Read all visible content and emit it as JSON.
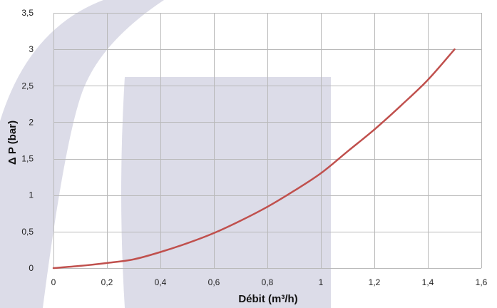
{
  "chart_data": {
    "type": "line",
    "xlabel": "Débit (m³/h)",
    "ylabel": "Δ P (bar)",
    "xlim": [
      0,
      1.6
    ],
    "ylim": [
      0,
      3.5
    ],
    "x_ticks": [
      "0",
      "0,2",
      "0,4",
      "0,6",
      "0,8",
      "1",
      "1,2",
      "1,4",
      "1,6"
    ],
    "y_ticks": [
      "0",
      "0,5",
      "1",
      "1,5",
      "2",
      "2,5",
      "3",
      "3,5"
    ],
    "grid": true,
    "series": [
      {
        "color": "#c0504d",
        "x": [
          0,
          0.1,
          0.2,
          0.3,
          0.4,
          0.5,
          0.6,
          0.7,
          0.8,
          0.9,
          1.0,
          1.1,
          1.2,
          1.3,
          1.4,
          1.5
        ],
        "y": [
          0,
          0.03,
          0.07,
          0.12,
          0.22,
          0.34,
          0.48,
          0.65,
          0.84,
          1.06,
          1.3,
          1.6,
          1.9,
          2.23,
          2.58,
          3.0
        ]
      }
    ]
  },
  "colors": {
    "grid": "#b9b9b9",
    "watermark": "#dcdce8"
  }
}
